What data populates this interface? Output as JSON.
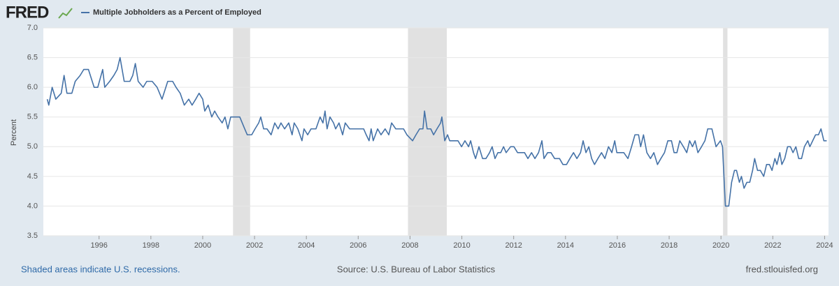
{
  "header": {
    "logo": "FRED"
  },
  "footer": {
    "note": "Shaded areas indicate U.S. recessions.",
    "source": "Source: U.S. Bureau of Labor Statistics",
    "site": "fred.stlouisfed.org"
  },
  "chart_data": {
    "type": "line",
    "ylabel": "Percent",
    "xlim": [
      1993.85,
      2024.15
    ],
    "xticks": [
      1996,
      1998,
      2000,
      2002,
      2004,
      2006,
      2008,
      2010,
      2012,
      2014,
      2016,
      2018,
      2020,
      2022,
      2024
    ],
    "ylim": [
      3.5,
      7.0
    ],
    "yticks": [
      {
        "value": 3.5,
        "label": "3.5"
      },
      {
        "value": 4.0,
        "label": "4.0"
      },
      {
        "value": 4.5,
        "label": "4.5"
      },
      {
        "value": 5.0,
        "label": "5.0"
      },
      {
        "value": 5.5,
        "label": "5.5"
      },
      {
        "value": 6.0,
        "label": "6.0"
      },
      {
        "value": 6.5,
        "label": "6.5"
      },
      {
        "value": 7.0,
        "label": "7.0"
      }
    ],
    "grid": true,
    "recessions": [
      [
        2001.17,
        2001.83
      ],
      [
        2007.92,
        2009.42
      ],
      [
        2020.08,
        2020.25
      ]
    ],
    "recession_color": "#e1e1e1",
    "x": [
      1994.0,
      1994.06,
      1994.19,
      1994.33,
      1994.54,
      1994.65,
      1994.76,
      1994.95,
      1995.08,
      1995.27,
      1995.41,
      1995.59,
      1995.81,
      1995.95,
      1996.14,
      1996.22,
      1996.41,
      1996.57,
      1996.7,
      1996.81,
      1996.97,
      1997.19,
      1997.3,
      1997.4,
      1997.51,
      1997.7,
      1997.84,
      1998.05,
      1998.24,
      1998.43,
      1998.65,
      1998.84,
      1998.97,
      1999.13,
      1999.29,
      1999.46,
      1999.59,
      1999.73,
      1999.86,
      2000.0,
      2000.08,
      2000.21,
      2000.35,
      2000.46,
      2000.59,
      2000.75,
      2000.86,
      2000.97,
      2001.08,
      2001.24,
      2001.43,
      2001.62,
      2001.72,
      2001.89,
      2002.02,
      2002.16,
      2002.24,
      2002.35,
      2002.48,
      2002.64,
      2002.78,
      2002.91,
      2003.02,
      2003.16,
      2003.32,
      2003.45,
      2003.53,
      2003.67,
      2003.83,
      2003.91,
      2004.05,
      2004.18,
      2004.37,
      2004.53,
      2004.64,
      2004.72,
      2004.8,
      2004.91,
      2005.05,
      2005.13,
      2005.26,
      2005.4,
      2005.5,
      2005.67,
      2005.8,
      2005.99,
      2006.21,
      2006.31,
      2006.42,
      2006.5,
      2006.58,
      2006.75,
      2006.88,
      2007.04,
      2007.18,
      2007.29,
      2007.45,
      2007.61,
      2007.75,
      2007.88,
      2008.1,
      2008.23,
      2008.37,
      2008.5,
      2008.56,
      2008.66,
      2008.8,
      2008.91,
      2009.04,
      2009.18,
      2009.23,
      2009.34,
      2009.45,
      2009.53,
      2009.72,
      2009.85,
      2009.99,
      2010.12,
      2010.26,
      2010.34,
      2010.45,
      2010.53,
      2010.66,
      2010.8,
      2010.93,
      2011.07,
      2011.17,
      2011.28,
      2011.39,
      2011.5,
      2011.61,
      2011.71,
      2011.88,
      2012.01,
      2012.15,
      2012.28,
      2012.42,
      2012.55,
      2012.69,
      2012.82,
      2012.96,
      2013.09,
      2013.17,
      2013.31,
      2013.44,
      2013.58,
      2013.77,
      2013.9,
      2014.04,
      2014.17,
      2014.31,
      2014.44,
      2014.58,
      2014.68,
      2014.79,
      2014.9,
      2015.01,
      2015.12,
      2015.25,
      2015.39,
      2015.52,
      2015.66,
      2015.79,
      2015.9,
      2015.98,
      2016.12,
      2016.25,
      2016.41,
      2016.55,
      2016.68,
      2016.82,
      2016.9,
      2017.01,
      2017.14,
      2017.28,
      2017.41,
      2017.55,
      2017.68,
      2017.82,
      2017.95,
      2018.09,
      2018.19,
      2018.3,
      2018.41,
      2018.55,
      2018.68,
      2018.79,
      2018.9,
      2019.0,
      2019.11,
      2019.25,
      2019.38,
      2019.49,
      2019.65,
      2019.81,
      2019.98,
      2020.06,
      2020.17,
      2020.3,
      2020.41,
      2020.52,
      2020.6,
      2020.71,
      2020.79,
      2020.89,
      2021.0,
      2021.11,
      2021.22,
      2021.3,
      2021.41,
      2021.52,
      2021.65,
      2021.76,
      2021.87,
      2021.97,
      2022.08,
      2022.16,
      2022.27,
      2022.35,
      2022.46,
      2022.57,
      2022.68,
      2022.78,
      2022.89,
      2023.0,
      2023.11,
      2023.22,
      2023.35,
      2023.43,
      2023.54,
      2023.65,
      2023.76,
      2023.86,
      2023.97,
      2024.08
    ],
    "series": [
      {
        "name": "Multiple Jobholders as a Percent of Employed",
        "color": "#4572a7",
        "values": [
          5.8,
          5.7,
          6.0,
          5.8,
          5.9,
          6.2,
          5.9,
          5.9,
          6.1,
          6.2,
          6.3,
          6.3,
          6.0,
          6.0,
          6.3,
          6.0,
          6.1,
          6.2,
          6.3,
          6.5,
          6.1,
          6.1,
          6.2,
          6.4,
          6.1,
          6.0,
          6.1,
          6.1,
          6.0,
          5.8,
          6.1,
          6.1,
          6.0,
          5.9,
          5.7,
          5.8,
          5.7,
          5.8,
          5.9,
          5.8,
          5.6,
          5.7,
          5.5,
          5.6,
          5.5,
          5.4,
          5.5,
          5.3,
          5.5,
          5.5,
          5.5,
          5.3,
          5.2,
          5.2,
          5.3,
          5.4,
          5.5,
          5.3,
          5.3,
          5.2,
          5.4,
          5.3,
          5.4,
          5.3,
          5.4,
          5.2,
          5.4,
          5.3,
          5.1,
          5.3,
          5.2,
          5.3,
          5.3,
          5.5,
          5.4,
          5.6,
          5.3,
          5.5,
          5.4,
          5.3,
          5.4,
          5.2,
          5.4,
          5.3,
          5.3,
          5.3,
          5.3,
          5.2,
          5.1,
          5.3,
          5.1,
          5.3,
          5.2,
          5.3,
          5.2,
          5.4,
          5.3,
          5.3,
          5.3,
          5.2,
          5.1,
          5.2,
          5.3,
          5.3,
          5.6,
          5.3,
          5.3,
          5.2,
          5.3,
          5.4,
          5.5,
          5.1,
          5.2,
          5.1,
          5.1,
          5.1,
          5.0,
          5.1,
          5.0,
          5.1,
          4.9,
          4.8,
          5.0,
          4.8,
          4.8,
          4.9,
          5.0,
          4.8,
          4.9,
          4.9,
          5.0,
          4.9,
          5.0,
          5.0,
          4.9,
          4.9,
          4.9,
          4.8,
          4.9,
          4.8,
          4.9,
          5.1,
          4.8,
          4.9,
          4.9,
          4.8,
          4.8,
          4.7,
          4.7,
          4.8,
          4.9,
          4.8,
          4.9,
          5.1,
          4.9,
          5.0,
          4.8,
          4.7,
          4.8,
          4.9,
          4.8,
          5.0,
          4.9,
          5.1,
          4.9,
          4.9,
          4.9,
          4.8,
          5.0,
          5.2,
          5.2,
          5.0,
          5.2,
          4.9,
          4.8,
          4.9,
          4.7,
          4.8,
          4.9,
          5.1,
          5.1,
          4.9,
          4.9,
          5.1,
          5.0,
          4.9,
          5.1,
          5.0,
          5.1,
          4.9,
          5.0,
          5.1,
          5.3,
          5.3,
          5.0,
          5.1,
          5.0,
          4.0,
          4.0,
          4.4,
          4.6,
          4.6,
          4.4,
          4.5,
          4.3,
          4.4,
          4.4,
          4.6,
          4.8,
          4.6,
          4.6,
          4.5,
          4.7,
          4.7,
          4.6,
          4.8,
          4.7,
          4.9,
          4.7,
          4.8,
          5.0,
          5.0,
          4.9,
          5.0,
          4.8,
          4.8,
          5.0,
          5.1,
          5.0,
          5.1,
          5.2,
          5.2,
          5.3,
          5.1,
          5.1
        ]
      }
    ]
  }
}
